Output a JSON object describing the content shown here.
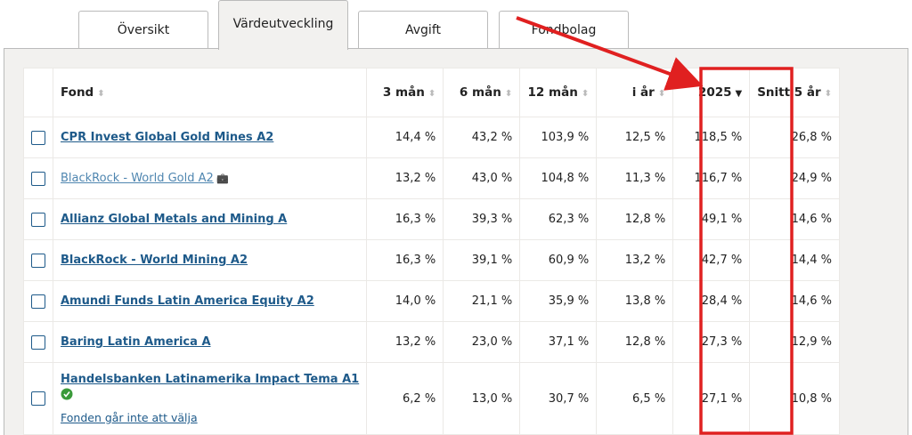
{
  "tabs": [
    "Översikt",
    "Värdeutveckling",
    "Avgift",
    "Fondbolag"
  ],
  "active_tab": 1,
  "table": {
    "columns": [
      "Fond",
      "3 mån",
      "6 mån",
      "12 mån",
      "i år",
      "2025",
      "Snitt 5 år"
    ],
    "sorted_column": 5,
    "rows": [
      {
        "fund": "CPR Invest Global Gold Mines A2",
        "values": [
          "14,4 %",
          "43,2 %",
          "103,9 %",
          "12,5 %",
          "118,5 %",
          "26,8 %"
        ]
      },
      {
        "fund": "BlackRock - World Gold A2",
        "values": [
          "13,2 %",
          "43,0 %",
          "104,8 %",
          "11,3 %",
          "116,7 %",
          "24,9 %"
        ]
      },
      {
        "fund": "Allianz Global Metals and Mining A",
        "values": [
          "16,3 %",
          "39,3 %",
          "62,3 %",
          "12,8 %",
          "49,1 %",
          "14,6 %"
        ]
      },
      {
        "fund": "BlackRock - World Mining A2",
        "values": [
          "16,3 %",
          "39,1 %",
          "60,9 %",
          "13,2 %",
          "42,7 %",
          "14,4 %"
        ]
      },
      {
        "fund": "Amundi Funds Latin America Equity A2",
        "values": [
          "14,0 %",
          "21,1 %",
          "35,9 %",
          "13,8 %",
          "28,4 %",
          "14,6 %"
        ]
      },
      {
        "fund": "Baring Latin America A",
        "values": [
          "13,2 %",
          "23,0 %",
          "37,1 %",
          "12,8 %",
          "27,3 %",
          "12,9 %"
        ]
      },
      {
        "fund": "Handelsbanken Latinamerika Impact Tema A1",
        "note": "Fonden går inte att välja",
        "values": [
          "6,2 %",
          "13,0 %",
          "30,7 %",
          "6,5 %",
          "27,1 %",
          "10,8 %"
        ]
      }
    ]
  }
}
